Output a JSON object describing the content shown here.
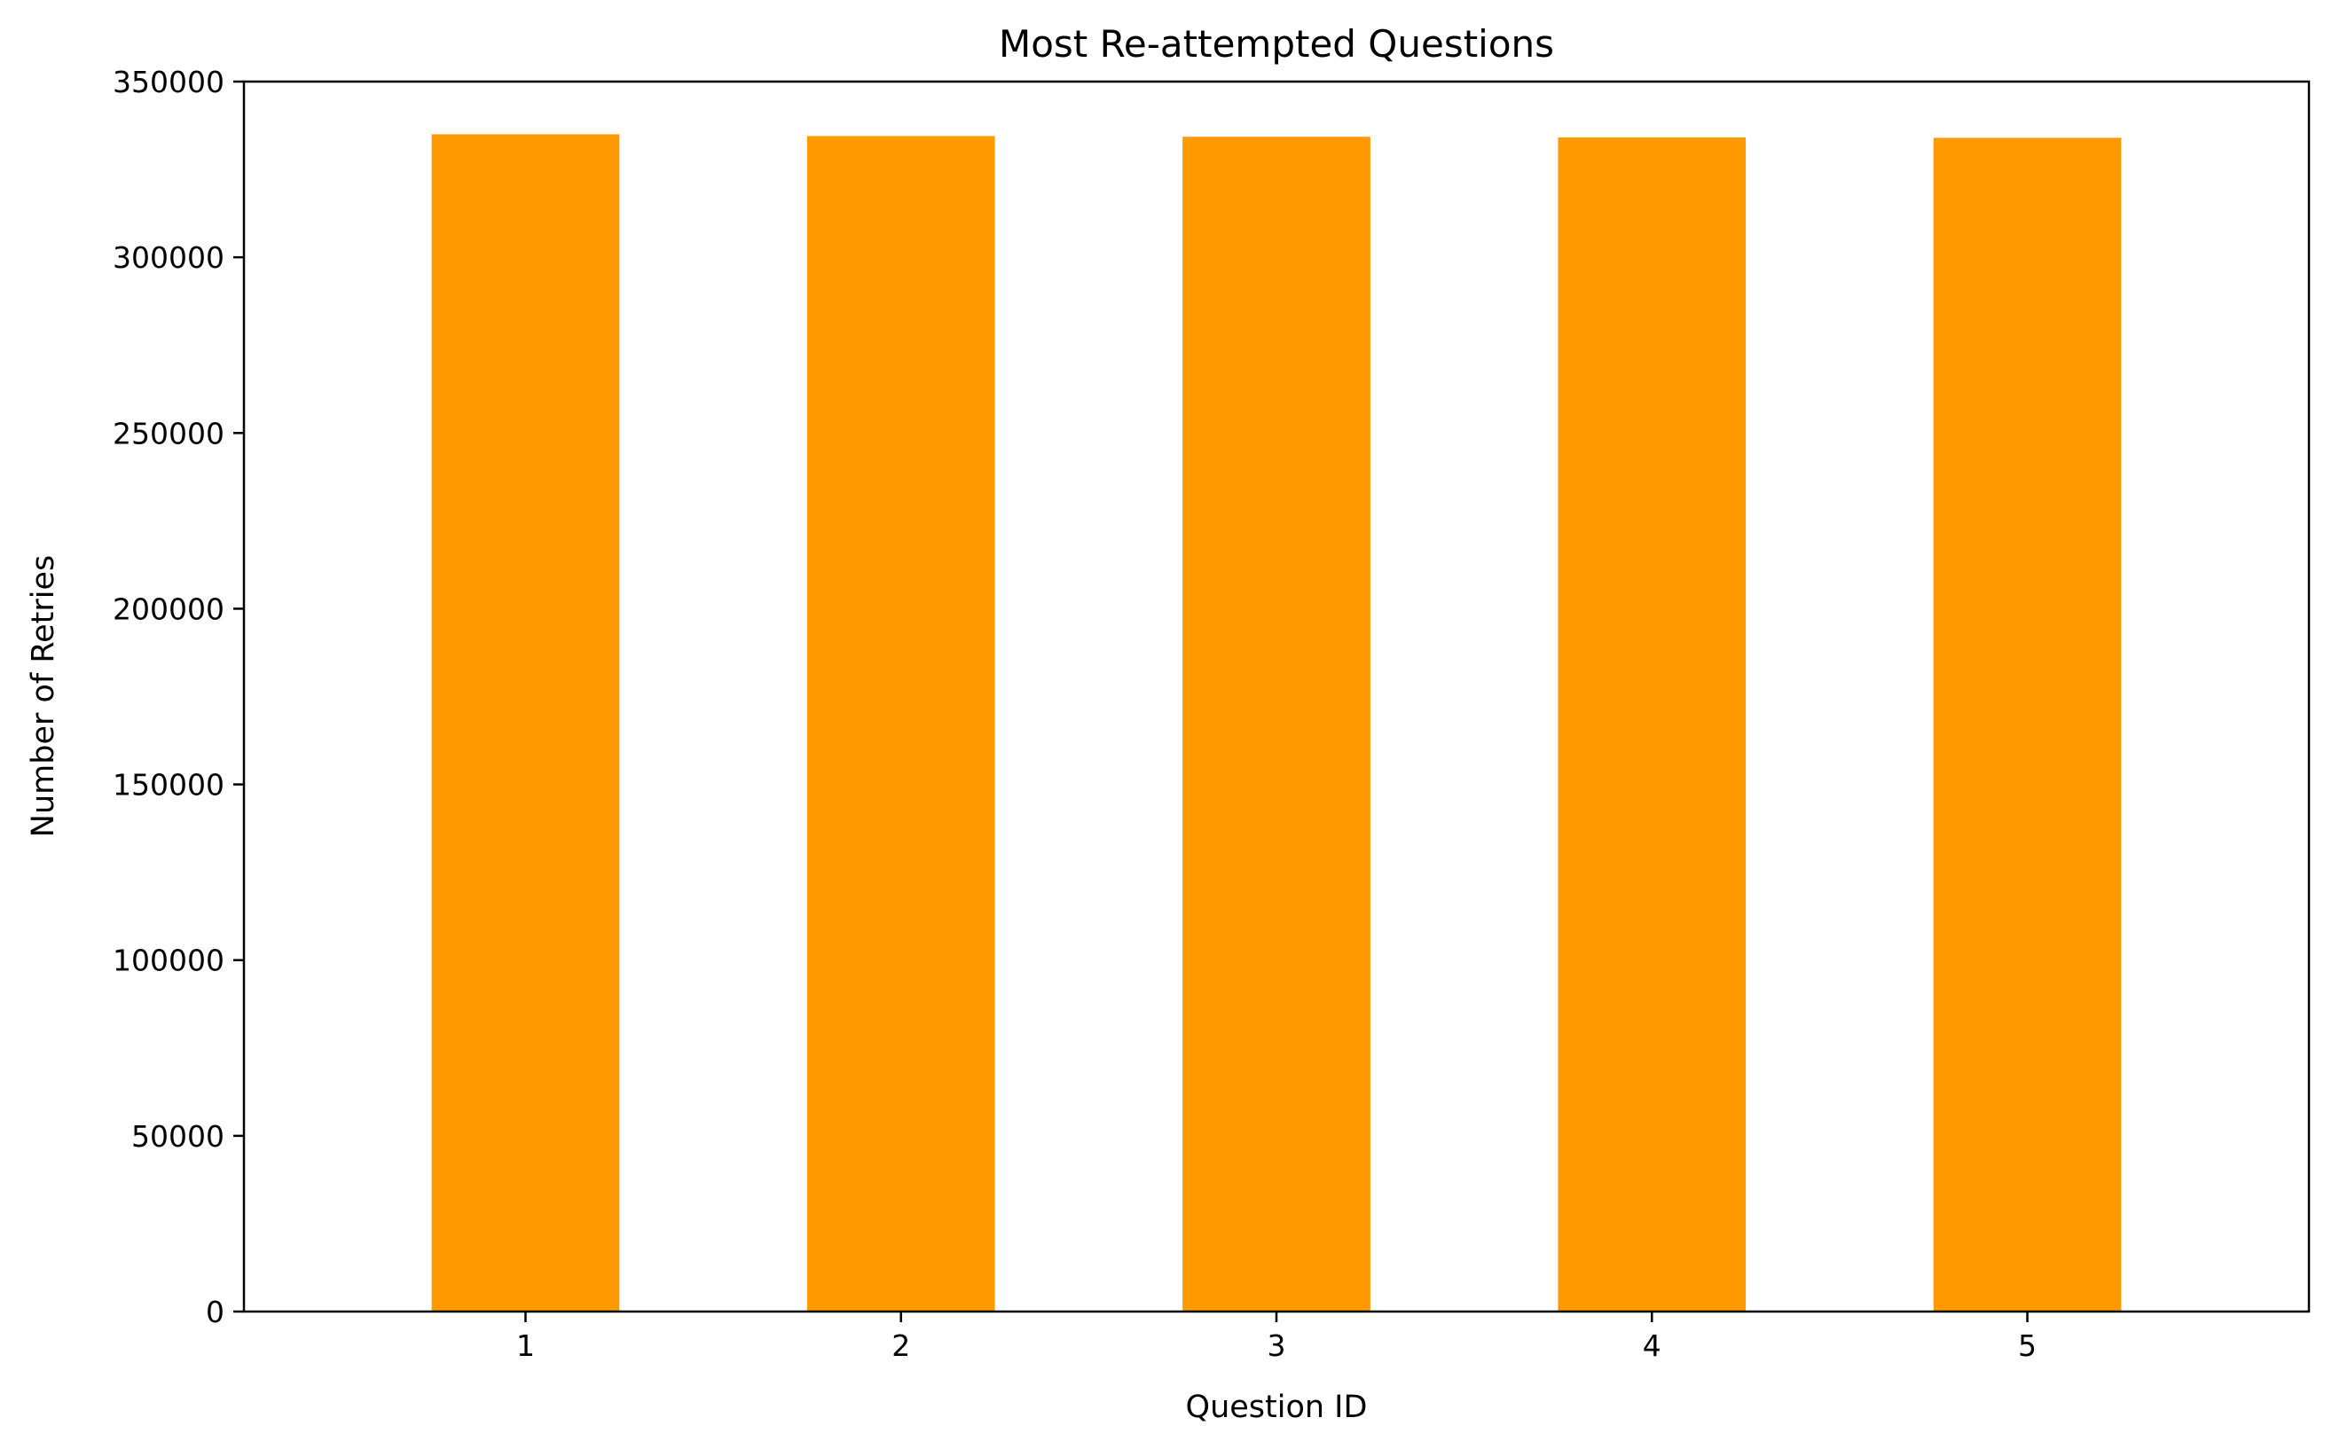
{
  "chart_data": {
    "type": "bar",
    "title": "Most Re-attempted Questions",
    "xlabel": "Question ID",
    "ylabel": "Number of Retries",
    "categories": [
      "1",
      "2",
      "3",
      "4",
      "5"
    ],
    "values": [
      335000,
      334500,
      334300,
      334100,
      334000
    ],
    "ylim": [
      0,
      350000
    ],
    "yticks": [
      0,
      50000,
      100000,
      150000,
      200000,
      250000,
      300000,
      350000
    ],
    "bar_color": "#ff9900",
    "grid": false,
    "legend": "none"
  }
}
